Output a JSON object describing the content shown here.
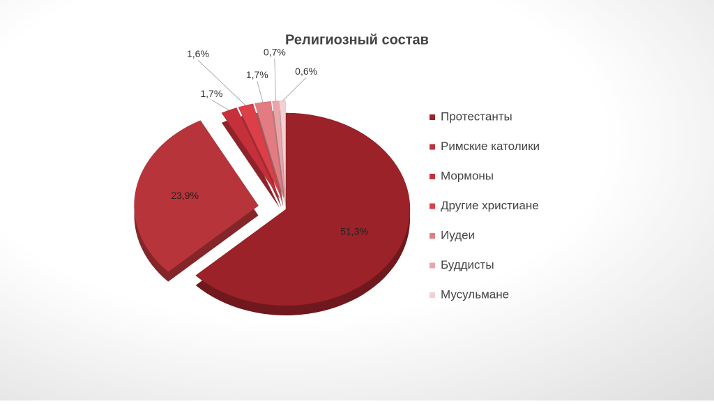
{
  "chart_data": {
    "type": "pie",
    "title": "Религиозный состав",
    "categories": [
      "Протестанты",
      "Римские католики",
      "Мормоны",
      "Другие христиане",
      "Иудеи",
      "Буддисты",
      "Мусульмане"
    ],
    "values": [
      51.3,
      23.9,
      1.7,
      1.6,
      1.7,
      0.7,
      0.6
    ],
    "value_labels": [
      "51,3%",
      "23,9%",
      "1,7%",
      "1,6%",
      "1,7%",
      "0,7%",
      "0,6%"
    ],
    "colors": [
      "#9a2228",
      "#b8343b",
      "#c5303a",
      "#dc3f48",
      "#e27c82",
      "#eba5a9",
      "#f3cfd1"
    ]
  }
}
